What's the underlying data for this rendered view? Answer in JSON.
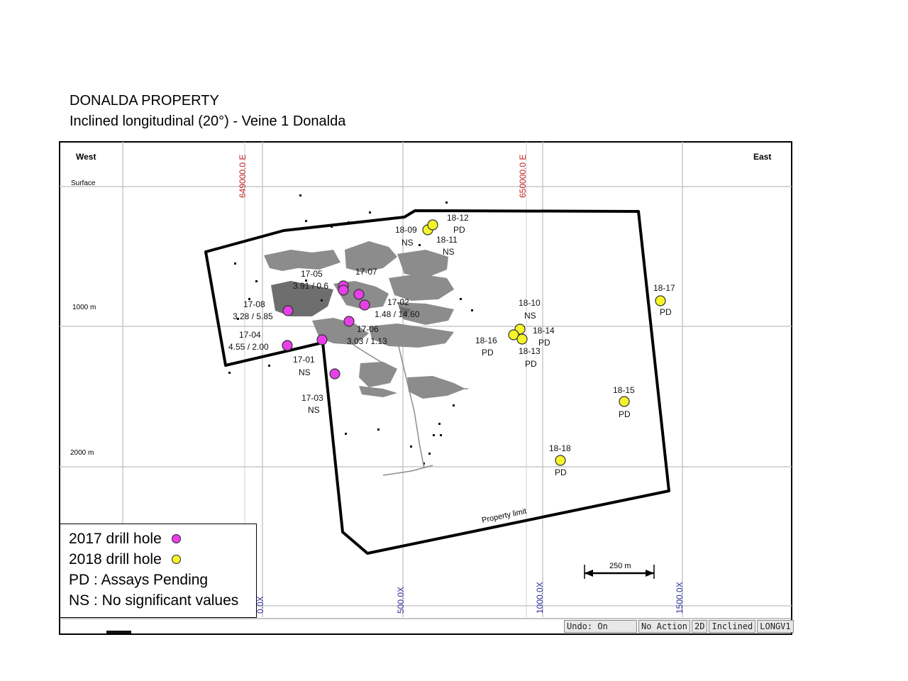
{
  "title": {
    "line1": "DONALDA PROPERTY",
    "line2": "Inclined longitudinal (20°) - Veine 1 Donalda"
  },
  "map": {
    "west_label": "West",
    "east_label": "East",
    "surface_label": "Surface",
    "depth_labels": [
      "1000 m",
      "2000 m"
    ],
    "top_grid_labels": [
      "649000.0 E",
      "650000.0 E"
    ],
    "bottom_grid_labels": [
      "0.0X",
      "500.0X",
      "1000.0X",
      "1500.0X"
    ],
    "property_limit_label": "Property limit",
    "scale_label": "250 m",
    "colors": {
      "drill_2017": "#e83fe8",
      "drill_2018": "#f5f52a",
      "stope": "#8a8a8a",
      "grid": "#c8c8c8",
      "boundary": "#000000"
    },
    "holes_2017": [
      {
        "id": "17-05",
        "note": "3.91 / 0.6"
      },
      {
        "id": "17-07",
        "note": ""
      },
      {
        "id": "17-02",
        "note": "1.48 / 14.60"
      },
      {
        "id": "17-08",
        "note": "3.28  / 5.85"
      },
      {
        "id": "17-06",
        "note": "3.03 / 1.13"
      },
      {
        "id": "17-04",
        "note": "4.55 / 2.00"
      },
      {
        "id": "17-01",
        "note": "NS"
      },
      {
        "id": "17-03",
        "note": "NS"
      }
    ],
    "holes_2018": [
      {
        "id": "18-12",
        "note": "PD"
      },
      {
        "id": "18-09",
        "note": "NS"
      },
      {
        "id": "18-11",
        "note": "NS"
      },
      {
        "id": "18-17",
        "note": "PD"
      },
      {
        "id": "18-10",
        "note": "NS"
      },
      {
        "id": "18-14",
        "note": "PD"
      },
      {
        "id": "18-16",
        "note": "PD"
      },
      {
        "id": "18-13",
        "note": "PD"
      },
      {
        "id": "18-15",
        "note": "PD"
      },
      {
        "id": "18-18",
        "note": "PD"
      }
    ]
  },
  "legend": {
    "item_2017": "2017 drill hole",
    "item_2018": "2018 drill hole",
    "pd": "PD : Assays Pending",
    "ns": "NS : No significant values"
  },
  "statusbar": {
    "undo": "Undo: On",
    "action": "No Action",
    "mode_2d": "2D",
    "inclined": "Inclined",
    "section": "LONGV1"
  }
}
